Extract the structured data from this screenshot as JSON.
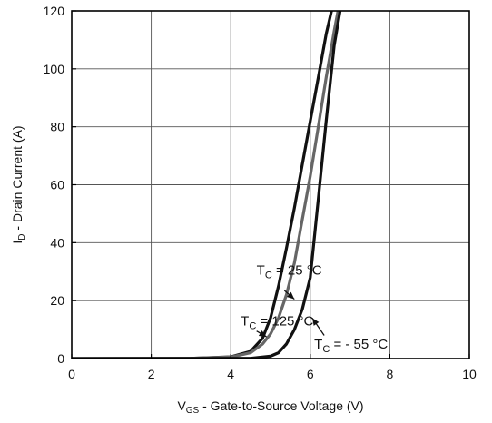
{
  "chart_data": {
    "type": "line",
    "title": "",
    "xlabel": {
      "main": "V",
      "sub": "GS",
      "rest": " - Gate-to-Source Voltage (V)"
    },
    "ylabel": {
      "main": "I",
      "sub": "D",
      "rest": " - Drain Current (A)"
    },
    "xlim": [
      0,
      10
    ],
    "ylim": [
      0,
      120
    ],
    "xticks": [
      0,
      2,
      4,
      6,
      8,
      10
    ],
    "yticks": [
      0,
      20,
      40,
      60,
      80,
      100,
      120
    ],
    "xtick_labels": [
      "0",
      "2",
      "4",
      "6",
      "8",
      "10"
    ],
    "ytick_labels": [
      "0",
      "20",
      "40",
      "60",
      "80",
      "100",
      "120"
    ],
    "grid": true,
    "legend": "none",
    "series": [
      {
        "label": {
          "main": "T",
          "sub": "C",
          "rest": " = 25 °C"
        },
        "color": "#111111",
        "x": [
          0,
          3.0,
          4.0,
          4.5,
          4.8,
          5.0,
          5.2,
          5.4,
          5.6,
          5.8,
          6.0,
          6.2,
          6.4,
          6.6
        ],
        "y": [
          0,
          0.1,
          0.6,
          2.5,
          7.0,
          14.0,
          25.0,
          38.0,
          52.0,
          67.0,
          82.0,
          97.0,
          112.0,
          124.0
        ]
      },
      {
        "label": {
          "main": "T",
          "sub": "C",
          "rest": " = 125 °C"
        },
        "color": "#666666",
        "x": [
          0,
          3.0,
          4.0,
          4.5,
          4.8,
          5.0,
          5.2,
          5.4,
          5.6,
          5.8,
          6.0,
          6.2,
          6.4,
          6.6,
          6.75
        ],
        "y": [
          0,
          0.1,
          0.5,
          2.0,
          5.0,
          8.5,
          14.0,
          22.0,
          33.0,
          48.0,
          63.0,
          80.0,
          97.0,
          113.0,
          124.0
        ]
      },
      {
        "label": {
          "main": "T",
          "sub": "C",
          "rest": " = - 55 °C"
        },
        "color": "#111111",
        "x": [
          0,
          4.5,
          5.0,
          5.2,
          5.4,
          5.6,
          5.8,
          6.0,
          6.2,
          6.4,
          6.6,
          6.8
        ],
        "y": [
          0,
          0.1,
          0.8,
          2.0,
          5.0,
          10.0,
          17.0,
          28.0,
          55.0,
          82.0,
          108.0,
          124.0
        ]
      }
    ],
    "annotations": [
      {
        "series": 0,
        "text_x": 4.65,
        "text_y": 29,
        "arrow_from": [
          5.35,
          23.5
        ],
        "arrow_to": [
          5.6,
          20.5
        ]
      },
      {
        "series": 1,
        "text_x": 4.25,
        "text_y": 11.5,
        "arrow_from": [
          4.65,
          9.5
        ],
        "arrow_to": [
          4.9,
          7.5
        ]
      },
      {
        "series": 2,
        "text_x": 6.1,
        "text_y": 3.5,
        "arrow_from": [
          6.35,
          8.0
        ],
        "arrow_to": [
          6.05,
          14.0
        ]
      }
    ]
  }
}
